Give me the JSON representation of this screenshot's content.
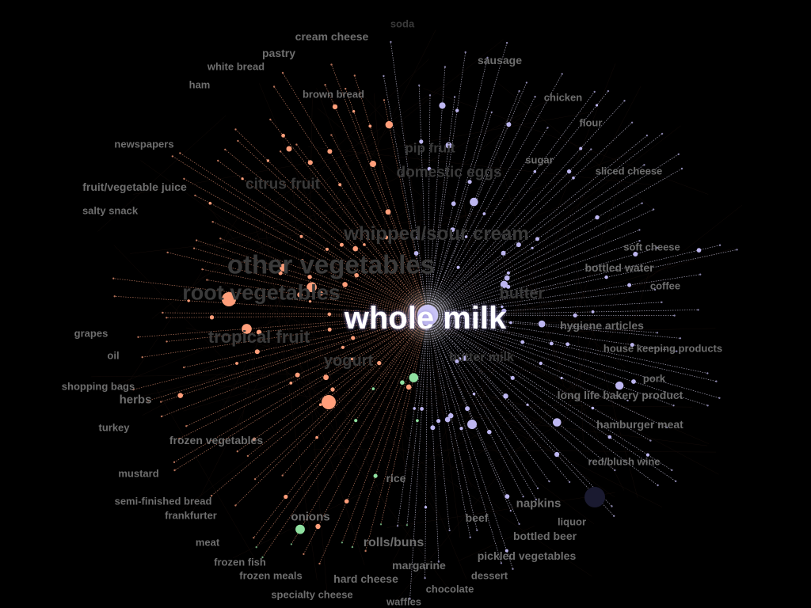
{
  "graph": {
    "focus": "whole milk",
    "colors": {
      "background": "#000000",
      "focus_node": "#c9c4f5",
      "purple_nodes": "#bdb6f0",
      "orange_nodes": "#ff9e7a",
      "green_nodes": "#8fe0a0",
      "edge_light": "#d8d4f0",
      "edge_orange": "#e89575",
      "label": "#6e6e6e",
      "label_focus": "#ffffff"
    },
    "labels": {
      "whole_milk": "whole milk",
      "soda": "soda",
      "cream_cheese": "cream cheese",
      "pastry": "pastry",
      "white_bread": "white bread",
      "ham": "ham",
      "brown_bread": "brown bread",
      "sausage": "sausage",
      "chicken": "chicken",
      "flour": "flour",
      "newspapers": "newspapers",
      "pip_fruit": "pip fruit",
      "sugar": "sugar",
      "domestic_eggs": "domestic eggs",
      "sliced_cheese": "sliced cheese",
      "fruit_vegetable_juice": "fruit/vegetable juice",
      "citrus_fruit": "citrus fruit",
      "salty_snack": "salty snack",
      "whipped_sour_cream": "whipped/sour cream",
      "soft_cheese": "soft cheese",
      "other_vegetables": "other vegetables",
      "bottled_water": "bottled water",
      "coffee": "coffee",
      "root_vegetables": "root vegetables",
      "butter": "butter",
      "hygiene_articles": "hygiene articles",
      "grapes": "grapes",
      "tropical_fruit": "tropical fruit",
      "house_keeping_products": "house keeping products",
      "oil": "oil",
      "yogurt": "yogurt",
      "butter_milk": "butter milk",
      "pork": "pork",
      "shopping_bags": "shopping bags",
      "long_life_bakery_product": "long life bakery product",
      "herbs": "herbs",
      "turkey": "turkey",
      "hamburger_meat": "hamburger meat",
      "frozen_vegetables": "frozen vegetables",
      "red_blush_wine": "red/blush wine",
      "mustard": "mustard",
      "rice": "rice",
      "semi_finished_bread": "semi-finished bread",
      "napkins": "napkins",
      "frankfurter": "frankfurter",
      "onions": "onions",
      "beef": "beef",
      "liquor": "liquor",
      "meat": "meat",
      "rolls_buns": "rolls/buns",
      "bottled_beer": "bottled beer",
      "frozen_fish": "frozen fish",
      "pickled_vegetables": "pickled vegetables",
      "margarine": "margarine",
      "frozen_meals": "frozen meals",
      "hard_cheese": "hard cheese",
      "dessert": "dessert",
      "chocolate": "chocolate",
      "specialty_cheese": "specialty cheese",
      "waffles": "waffles"
    }
  }
}
